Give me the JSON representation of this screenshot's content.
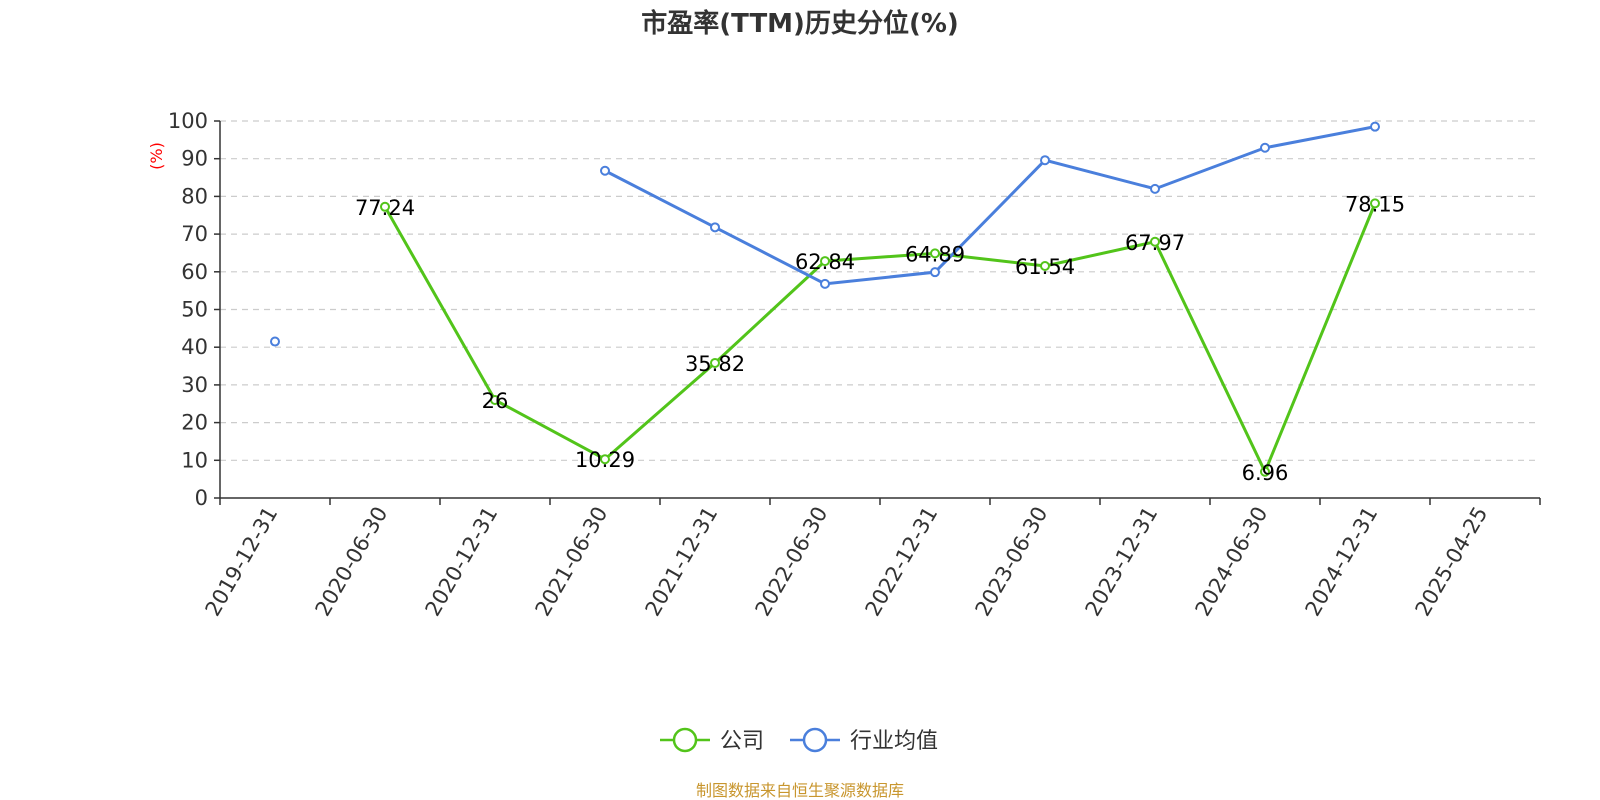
{
  "chart_data": {
    "type": "line",
    "title": "市盈率(TTM)历史分位(%)",
    "ylabel": "(%)",
    "xlabel": "",
    "ylim": [
      0,
      100
    ],
    "yticks": [
      0,
      10,
      20,
      30,
      40,
      50,
      60,
      70,
      80,
      90,
      100
    ],
    "grid": "horizontal dashed",
    "legend_position": "bottom-center",
    "categories": [
      "2019-12-31",
      "2020-06-30",
      "2020-12-31",
      "2021-06-30",
      "2021-12-31",
      "2022-06-30",
      "2022-12-31",
      "2023-06-30",
      "2023-12-31",
      "2024-06-30",
      "2024-12-31",
      "2025-04-25"
    ],
    "series": [
      {
        "name": "公司",
        "color": "#52c41a",
        "show_labels": true,
        "values": [
          null,
          77.24,
          26,
          10.29,
          35.82,
          62.84,
          64.89,
          61.54,
          67.97,
          6.96,
          78.15,
          null
        ]
      },
      {
        "name": "行业均值",
        "color": "#4a7fdc",
        "show_labels": false,
        "values": [
          41.5,
          null,
          null,
          86.8,
          71.8,
          56.8,
          59.9,
          89.6,
          82.0,
          92.9,
          98.5,
          null
        ]
      }
    ],
    "source": "制图数据来自恒生聚源数据库"
  }
}
